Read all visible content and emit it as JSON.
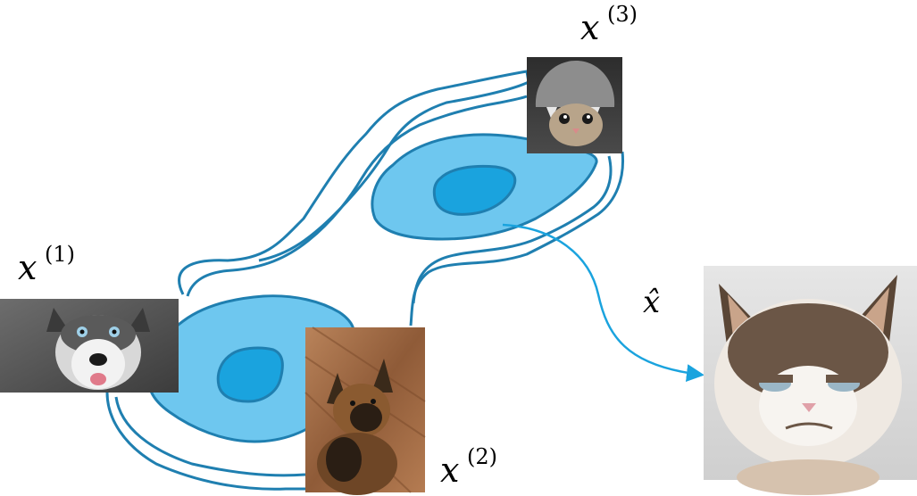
{
  "colors": {
    "contour": "#1f7fb0",
    "fill_light": "#6ec7ef",
    "fill_dark": "#1aa3de",
    "arrow": "#1aa3de"
  },
  "labels": {
    "x1": {
      "base": "x",
      "sup": "(1)"
    },
    "x2": {
      "base": "x",
      "sup": "(2)"
    },
    "x3": {
      "base": "x",
      "sup": "(3)"
    },
    "xhat": {
      "base": "x̂"
    }
  },
  "images": {
    "husky": "husky-dog-photo",
    "shepherd": "german-shepherd-photo",
    "cat_hat": "cat-in-knit-hat-photo",
    "grumpy": "grumpy-cat-photo"
  }
}
